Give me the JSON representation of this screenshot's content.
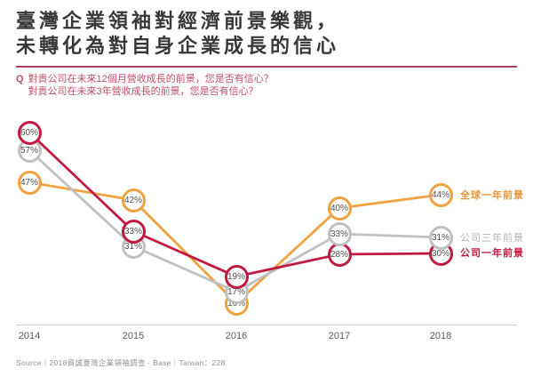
{
  "slide": {
    "title_line1": "臺灣企業領袖對經濟前景樂觀，",
    "title_line2": "未轉化為對自身企業成長的信心",
    "question_prefix": "Q",
    "question_line1": "對貴公司在未來12個月營收成長的前景，您是否有信心？",
    "question_line2": "對貴公司在未來3年營收成長的前景，您是否有信心？",
    "source": "Source｜2018資誠臺灣企業領袖調查 · Base｜Taiwan：228"
  },
  "colors": {
    "accent_red": "#c11a40",
    "orange": "#f0a23e",
    "gray": "#c0c0c0",
    "legend_gray_text": "#b3b3b3",
    "legend_orange_text": "#e8963c",
    "question_text": "#c0506a",
    "title_divider": "#a84058",
    "axis_line": "#cfcfcf"
  },
  "chart_data": {
    "type": "line",
    "title": "臺灣企業領袖對經濟前景樂觀，未轉化為對自身企業成長的信心",
    "categories": [
      "2014",
      "2015",
      "2016",
      "2017",
      "2018"
    ],
    "series": [
      {
        "key": "global_one_year",
        "name": "全球一年前景",
        "color": "#f0a23e",
        "values": [
          47,
          42,
          16,
          40,
          44
        ]
      },
      {
        "key": "company_three_year",
        "name": "公司三年前景",
        "color": "#c0c0c0",
        "values": [
          57,
          31,
          17,
          33,
          31
        ]
      },
      {
        "key": "company_one_year",
        "name": "公司一年前景",
        "color": "#c11a40",
        "values": [
          60,
          33,
          19,
          28,
          30
        ]
      }
    ],
    "value_suffix": "%",
    "xlabel": "",
    "ylabel": "",
    "ylim": [
      0,
      70
    ],
    "grid": false,
    "legend_position": "right",
    "marker": "circle-with-value-label"
  }
}
